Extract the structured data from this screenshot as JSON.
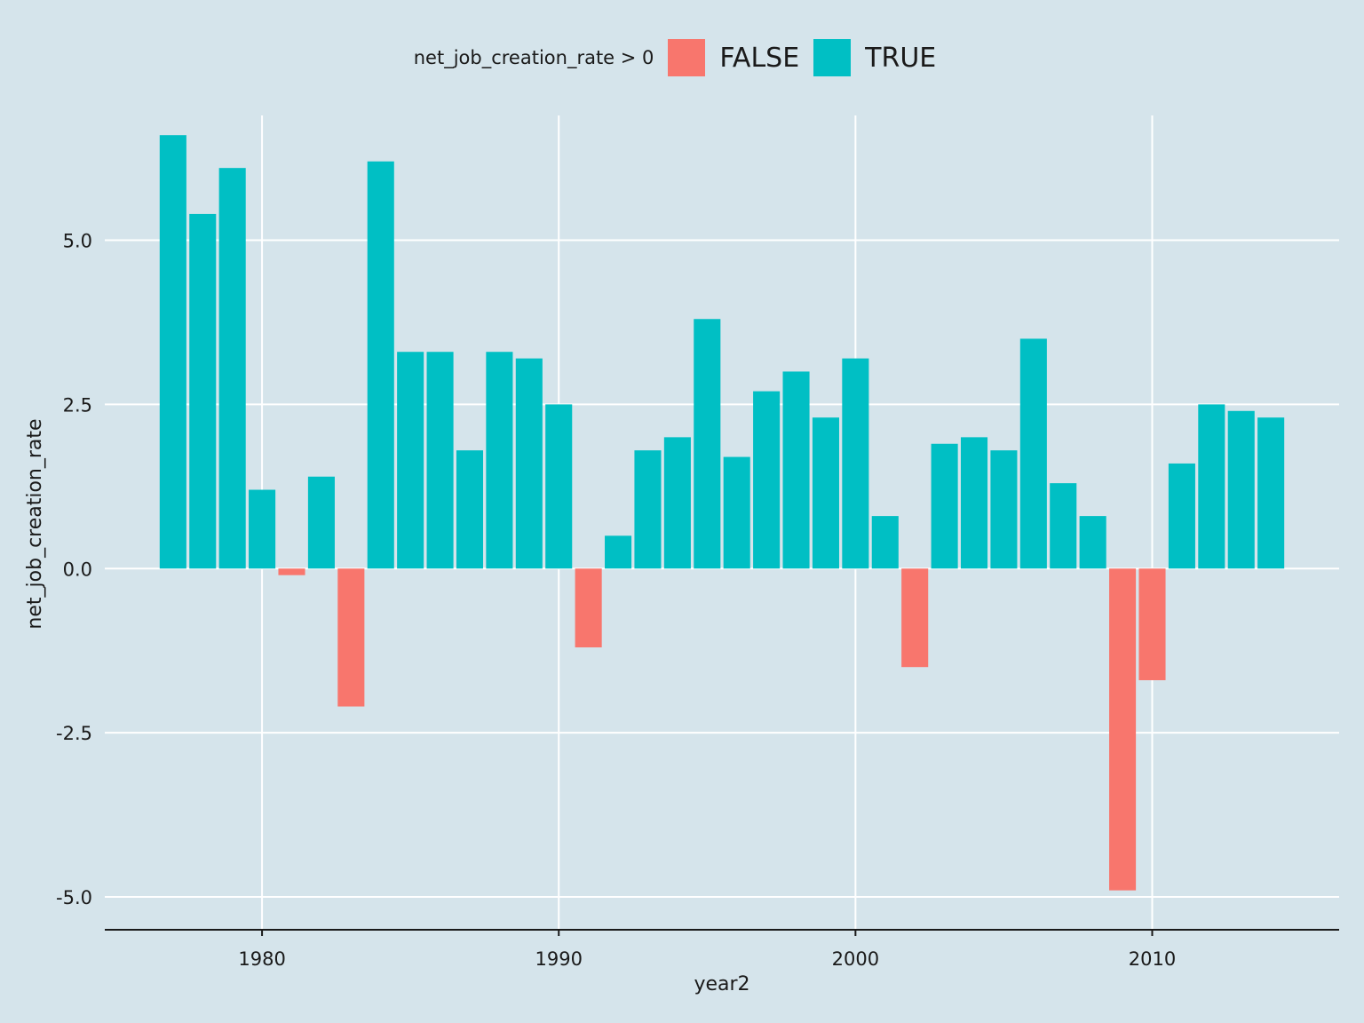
{
  "chart_data": {
    "type": "bar",
    "title": "",
    "xlabel": "year2",
    "ylabel": "net_job_creation_rate",
    "legend_title": "net_job_creation_rate > 0",
    "legend": [
      {
        "label": "FALSE",
        "color": "#f8766d"
      },
      {
        "label": "TRUE",
        "color": "#00bfc4"
      }
    ],
    "x": [
      1977,
      1978,
      1979,
      1980,
      1981,
      1982,
      1983,
      1984,
      1985,
      1986,
      1987,
      1988,
      1989,
      1990,
      1991,
      1992,
      1993,
      1994,
      1995,
      1996,
      1997,
      1998,
      1999,
      2000,
      2001,
      2002,
      2003,
      2004,
      2005,
      2006,
      2007,
      2008,
      2009,
      2010,
      2011,
      2012,
      2013,
      2014
    ],
    "values": [
      6.6,
      5.4,
      6.1,
      1.2,
      -0.1,
      1.4,
      -2.1,
      6.2,
      3.3,
      3.3,
      1.8,
      3.3,
      3.2,
      2.5,
      -1.2,
      0.5,
      1.8,
      2.0,
      3.8,
      1.7,
      2.7,
      3.0,
      2.3,
      3.2,
      0.8,
      -1.5,
      1.9,
      2.0,
      1.8,
      3.5,
      1.3,
      0.8,
      -4.9,
      -1.7,
      1.6,
      2.5,
      2.4,
      2.3
    ],
    "xlim": [
      1974.7,
      2016.3
    ],
    "ylim": [
      -5.5,
      6.9
    ],
    "x_ticks": [
      1980,
      1990,
      2000,
      2010
    ],
    "x_tick_labels": [
      "1980",
      "1990",
      "2000",
      "2010"
    ],
    "y_ticks": [
      5.0,
      2.5,
      0.0,
      -2.5,
      -5.0
    ],
    "y_tick_labels": [
      "5.0",
      "2.5",
      "0.0",
      "-2.5",
      "-5.0"
    ],
    "grid": true,
    "legend_position": "top"
  }
}
